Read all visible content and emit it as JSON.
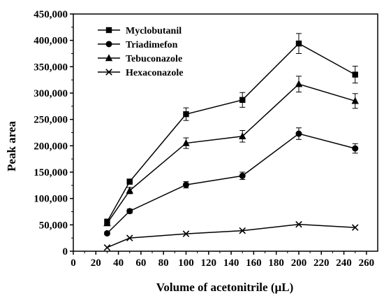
{
  "chart_data": {
    "type": "line",
    "xlabel": "Volume of acetonitrile (µL)",
    "ylabel": "Peak area",
    "xlim": [
      0,
      270
    ],
    "ylim": [
      0,
      450000
    ],
    "x_ticks": [
      0,
      20,
      40,
      60,
      80,
      100,
      120,
      140,
      160,
      180,
      200,
      220,
      240,
      260
    ],
    "x_tick_labels": [
      "0",
      "20",
      "40",
      "60",
      "80",
      "100",
      "120",
      "140",
      "160",
      "180",
      "200",
      "220",
      "240",
      "260"
    ],
    "y_ticks": [
      0,
      50000,
      100000,
      150000,
      200000,
      250000,
      300000,
      350000,
      400000,
      450000
    ],
    "y_tick_labels": [
      "0",
      "50,000",
      "100,000",
      "150,000",
      "200,000",
      "250,000",
      "300,000",
      "350,000",
      "400,000",
      "450,000"
    ],
    "grid": false,
    "legend_position": "top-left",
    "x": [
      30,
      50,
      100,
      150,
      200,
      250
    ],
    "series": [
      {
        "name": "Myclobutanil",
        "marker": "square",
        "values": [
          56000,
          132000,
          260000,
          287000,
          394000,
          335000
        ],
        "errors": [
          5000,
          5000,
          12000,
          14000,
          19000,
          16000
        ]
      },
      {
        "name": "Triadimefon",
        "marker": "circle",
        "values": [
          34000,
          76000,
          126000,
          143000,
          223000,
          195000
        ],
        "errors": [
          3000,
          4000,
          6000,
          7000,
          11000,
          9000
        ]
      },
      {
        "name": "Tebuconazole",
        "marker": "triangle",
        "values": [
          53000,
          115000,
          205000,
          218000,
          317000,
          285000
        ],
        "errors": [
          4000,
          6000,
          10000,
          11000,
          15000,
          14000
        ]
      },
      {
        "name": "Hexaconazole",
        "marker": "x",
        "values": [
          7000,
          25000,
          33000,
          39000,
          51000,
          45000
        ],
        "errors": [
          0,
          0,
          0,
          0,
          0,
          0
        ]
      }
    ],
    "colors": {
      "line": "#000000",
      "background": "#ffffff"
    }
  }
}
